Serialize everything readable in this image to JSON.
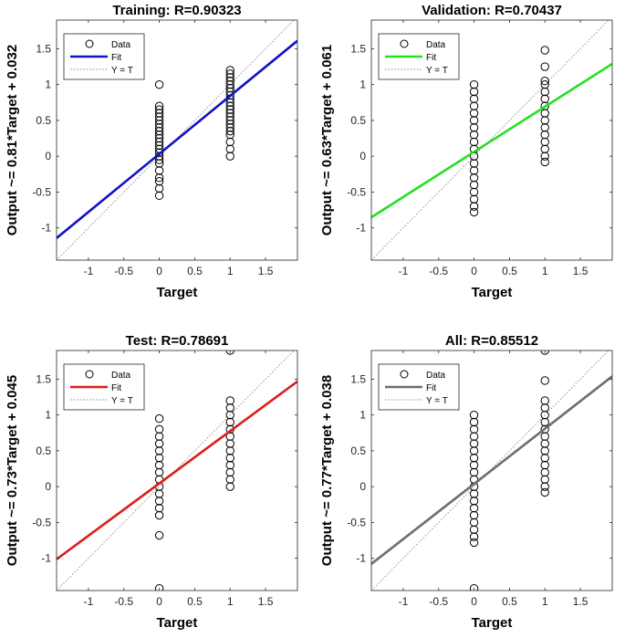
{
  "chart_data": [
    {
      "type": "scatter",
      "title": "Training: R=0.90323",
      "xlabel": "Target",
      "ylabel": "Output ~= 0.81*Target + 0.032",
      "xlim": [
        -1.45,
        1.95
      ],
      "ylim": [
        -1.45,
        1.9
      ],
      "xticks": [
        "-1",
        "-0.5",
        "0",
        "0.5",
        "1",
        "1.5"
      ],
      "yticks": [
        "-1",
        "-0.5",
        "0",
        "0.5",
        "1",
        "1.5"
      ],
      "fit": {
        "slope": 0.81,
        "intercept": 0.032,
        "color": "#1010c8"
      },
      "legend": [
        "Data",
        "Fit",
        "Y = T"
      ],
      "legend_position": "top-left",
      "grid": false,
      "points_target0": [
        -0.55,
        -0.45,
        -0.35,
        -0.3,
        -0.2,
        -0.1,
        -0.05,
        0,
        0.05,
        0.1,
        0.15,
        0.2,
        0.25,
        0.3,
        0.35,
        0.4,
        0.45,
        0.5,
        0.55,
        0.6,
        0.65,
        0.7,
        1.0
      ],
      "points_target1": [
        0.0,
        0.1,
        0.2,
        0.3,
        0.35,
        0.4,
        0.45,
        0.5,
        0.55,
        0.6,
        0.65,
        0.7,
        0.75,
        0.8,
        0.85,
        0.9,
        0.95,
        1.0,
        1.05,
        1.1,
        1.15,
        1.2
      ]
    },
    {
      "type": "scatter",
      "title": "Validation: R=0.70437",
      "xlabel": "Target",
      "ylabel": "Output ~= 0.63*Target + 0.061",
      "xlim": [
        -1.45,
        1.95
      ],
      "ylim": [
        -1.45,
        1.9
      ],
      "xticks": [
        "-1",
        "-0.5",
        "0",
        "0.5",
        "1",
        "1.5"
      ],
      "yticks": [
        "-1",
        "-0.5",
        "0",
        "0.5",
        "1",
        "1.5"
      ],
      "fit": {
        "slope": 0.63,
        "intercept": 0.061,
        "color": "#22e022"
      },
      "legend": [
        "Data",
        "Fit",
        "Y = T"
      ],
      "legend_position": "top-left",
      "grid": false,
      "points_target0": [
        -0.78,
        -0.7,
        -0.6,
        -0.5,
        -0.4,
        -0.3,
        -0.2,
        -0.1,
        0,
        0.1,
        0.2,
        0.3,
        0.4,
        0.5,
        0.6,
        0.7,
        0.8,
        0.9,
        1.0
      ],
      "points_target1": [
        -0.08,
        0.0,
        0.1,
        0.2,
        0.3,
        0.4,
        0.5,
        0.6,
        0.7,
        0.8,
        0.9,
        1.0,
        1.05,
        1.25,
        1.48
      ]
    },
    {
      "type": "scatter",
      "title": "Test: R=0.78691",
      "xlabel": "Target",
      "ylabel": "Output ~= 0.73*Target + 0.045",
      "xlim": [
        -1.45,
        1.95
      ],
      "ylim": [
        -1.45,
        1.9
      ],
      "xticks": [
        "-1",
        "-0.5",
        "0",
        "0.5",
        "1",
        "1.5"
      ],
      "yticks": [
        "-1",
        "-0.5",
        "0",
        "0.5",
        "1",
        "1.5"
      ],
      "fit": {
        "slope": 0.73,
        "intercept": 0.045,
        "color": "#dd1c1c"
      },
      "legend": [
        "Data",
        "Fit",
        "Y = T"
      ],
      "legend_position": "top-left",
      "grid": false,
      "points_target0": [
        -1.42,
        -0.68,
        -0.4,
        -0.3,
        -0.2,
        -0.1,
        0,
        0.1,
        0.2,
        0.3,
        0.4,
        0.5,
        0.6,
        0.7,
        0.8,
        0.95
      ],
      "points_target1": [
        0.0,
        0.1,
        0.2,
        0.3,
        0.4,
        0.5,
        0.6,
        0.7,
        0.8,
        0.9,
        1.0,
        1.1,
        1.2,
        1.9
      ]
    },
    {
      "type": "scatter",
      "title": "All: R=0.85512",
      "xlabel": "Target",
      "ylabel": "Output ~= 0.77*Target + 0.038",
      "xlim": [
        -1.45,
        1.95
      ],
      "ylim": [
        -1.45,
        1.9
      ],
      "xticks": [
        "-1",
        "-0.5",
        "0",
        "0.5",
        "1",
        "1.5"
      ],
      "yticks": [
        "-1",
        "-0.5",
        "0",
        "0.5",
        "1",
        "1.5"
      ],
      "fit": {
        "slope": 0.77,
        "intercept": 0.038,
        "color": "#6e6e6e"
      },
      "legend": [
        "Data",
        "Fit",
        "Y = T"
      ],
      "legend_position": "top-left",
      "grid": false,
      "points_target0": [
        -1.42,
        -0.78,
        -0.7,
        -0.6,
        -0.5,
        -0.4,
        -0.3,
        -0.2,
        -0.1,
        0,
        0.1,
        0.2,
        0.3,
        0.4,
        0.5,
        0.6,
        0.7,
        0.8,
        0.9,
        1.0
      ],
      "points_target1": [
        -0.08,
        0.0,
        0.1,
        0.2,
        0.3,
        0.4,
        0.5,
        0.6,
        0.7,
        0.8,
        0.9,
        1.0,
        1.1,
        1.2,
        1.48,
        1.9
      ]
    }
  ]
}
